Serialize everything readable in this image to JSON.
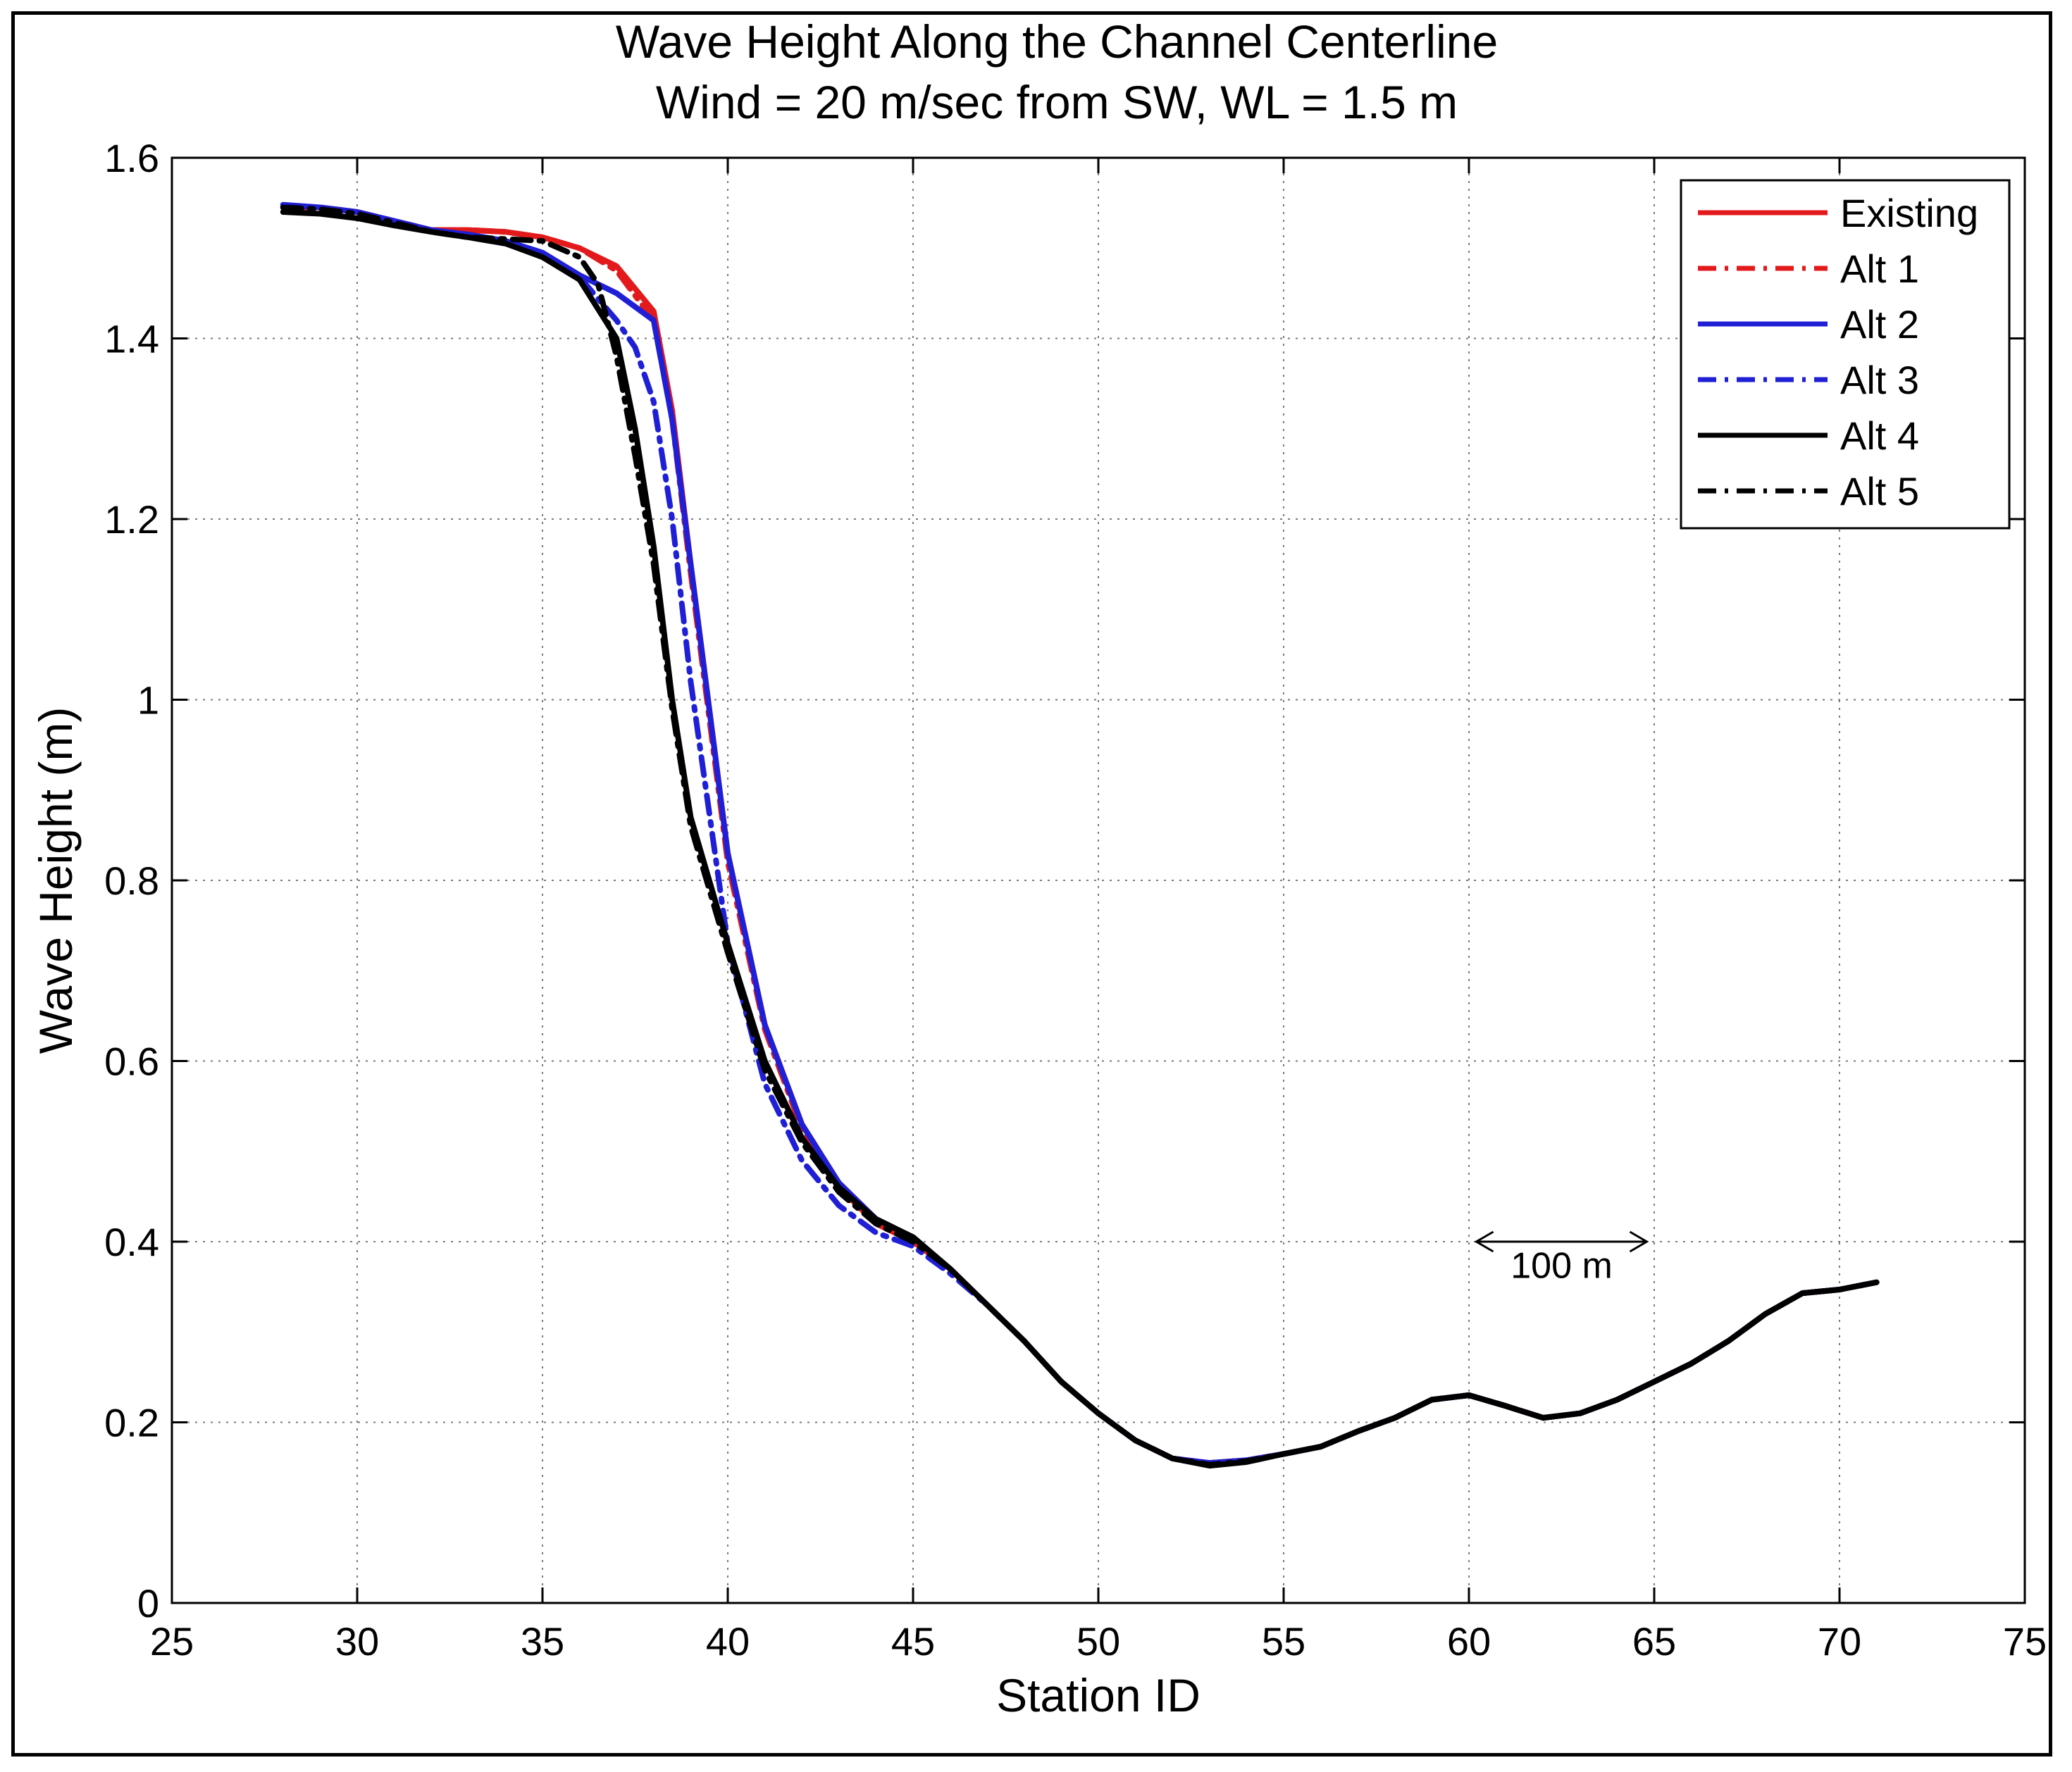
{
  "chart_data": {
    "type": "line",
    "title": "Wave Height Along the Channel Centerline",
    "subtitle": "Wind = 20 m/sec from SW, WL = 1.5 m",
    "xlabel": "Station ID",
    "ylabel": "Wave Height (m)",
    "xlim": [
      25,
      75
    ],
    "ylim": [
      0,
      1.6
    ],
    "xticks": [
      "25",
      "30",
      "35",
      "40",
      "45",
      "50",
      "55",
      "60",
      "65",
      "70",
      "75"
    ],
    "yticks": [
      "0",
      "0.2",
      "0.4",
      "0.6",
      "0.8",
      "1",
      "1.2",
      "1.4",
      "1.6"
    ],
    "grid": true,
    "legend_position": "top-right",
    "annotation": {
      "text": "100 m",
      "arrow_from_x": 60.2,
      "arrow_to_x": 64.8,
      "arrow_y": 0.4,
      "text_x": 62.5,
      "text_y": 0.36
    },
    "series": [
      {
        "name": "Existing",
        "color": "#e31a1c",
        "dash": "solid",
        "x": [
          28,
          29,
          30,
          31,
          32,
          33,
          34,
          35,
          36,
          37,
          38,
          38.5,
          39,
          40,
          41,
          42,
          43,
          44,
          45,
          46,
          47,
          48,
          49,
          50,
          51,
          52,
          53,
          54,
          55,
          56,
          57,
          58,
          59,
          60,
          61,
          62,
          63,
          64,
          65,
          66,
          67,
          68,
          69,
          70,
          71
        ],
        "y": [
          1.545,
          1.545,
          1.54,
          1.53,
          1.52,
          1.52,
          1.518,
          1.512,
          1.5,
          1.48,
          1.43,
          1.32,
          1.15,
          0.83,
          0.64,
          0.53,
          0.465,
          0.425,
          0.405,
          0.37,
          0.33,
          0.29,
          0.245,
          0.21,
          0.18,
          0.16,
          0.155,
          0.158,
          0.165,
          0.173,
          0.19,
          0.205,
          0.225,
          0.23,
          0.218,
          0.205,
          0.21,
          0.225,
          0.245,
          0.265,
          0.29,
          0.32,
          0.343,
          0.347,
          0.355
        ]
      },
      {
        "name": "Alt 1",
        "color": "#e31a1c",
        "dash": "dashdot",
        "x": [
          28,
          29,
          30,
          31,
          32,
          33,
          34,
          35,
          36,
          37,
          38,
          38.5,
          39,
          40,
          41,
          42,
          43,
          44,
          45,
          46,
          47,
          48,
          49,
          50,
          51,
          52,
          53,
          54,
          55,
          56,
          57,
          58,
          59,
          60,
          61,
          62,
          63,
          64,
          65,
          66,
          67,
          68,
          69,
          70,
          71
        ],
        "y": [
          1.545,
          1.545,
          1.54,
          1.53,
          1.52,
          1.52,
          1.518,
          1.512,
          1.5,
          1.475,
          1.42,
          1.31,
          1.14,
          0.82,
          0.635,
          0.525,
          0.46,
          0.42,
          0.4,
          0.37,
          0.33,
          0.29,
          0.245,
          0.21,
          0.18,
          0.16,
          0.155,
          0.158,
          0.165,
          0.173,
          0.19,
          0.205,
          0.225,
          0.23,
          0.218,
          0.205,
          0.21,
          0.225,
          0.245,
          0.265,
          0.29,
          0.32,
          0.343,
          0.347,
          0.355
        ]
      },
      {
        "name": "Alt 2",
        "color": "#1f1fd6",
        "dash": "solid",
        "x": [
          28,
          29,
          30,
          31,
          32,
          33,
          34,
          35,
          36,
          37,
          38,
          38.5,
          39,
          40,
          41,
          42,
          43,
          44,
          45,
          46,
          47,
          48,
          49,
          50,
          51,
          52,
          53,
          54,
          55,
          56,
          57,
          58,
          59,
          60,
          61,
          62,
          63,
          64,
          65,
          66,
          67,
          68,
          69,
          70,
          71
        ],
        "y": [
          1.548,
          1.545,
          1.54,
          1.53,
          1.52,
          1.515,
          1.508,
          1.495,
          1.47,
          1.45,
          1.42,
          1.31,
          1.15,
          0.83,
          0.64,
          0.53,
          0.465,
          0.425,
          0.405,
          0.37,
          0.33,
          0.29,
          0.245,
          0.21,
          0.18,
          0.16,
          0.155,
          0.158,
          0.165,
          0.173,
          0.19,
          0.205,
          0.225,
          0.23,
          0.218,
          0.205,
          0.21,
          0.225,
          0.245,
          0.265,
          0.29,
          0.32,
          0.343,
          0.347,
          0.355
        ]
      },
      {
        "name": "Alt 3",
        "color": "#1f1fd6",
        "dash": "dashdot",
        "x": [
          28,
          29,
          30,
          31,
          32,
          33,
          34,
          35,
          36,
          37,
          37.5,
          38,
          38.5,
          39,
          40,
          41,
          42,
          43,
          44,
          45,
          46,
          47,
          48,
          49,
          50,
          51,
          52,
          53,
          54,
          55,
          56,
          57,
          58,
          59,
          60,
          61,
          62,
          63,
          64,
          65,
          66,
          67,
          68,
          69,
          70,
          71
        ],
        "y": [
          1.545,
          1.543,
          1.538,
          1.528,
          1.518,
          1.512,
          1.505,
          1.493,
          1.468,
          1.42,
          1.39,
          1.33,
          1.2,
          1.02,
          0.73,
          0.575,
          0.49,
          0.44,
          0.41,
          0.395,
          0.365,
          0.33,
          0.29,
          0.245,
          0.21,
          0.18,
          0.16,
          0.155,
          0.158,
          0.165,
          0.173,
          0.19,
          0.205,
          0.225,
          0.23,
          0.218,
          0.205,
          0.21,
          0.225,
          0.245,
          0.265,
          0.29,
          0.32,
          0.343,
          0.347,
          0.355
        ]
      },
      {
        "name": "Alt 4",
        "color": "#000000",
        "dash": "solid",
        "x": [
          28,
          29,
          30,
          31,
          32,
          33,
          34,
          35,
          36,
          37,
          37.5,
          38,
          38.5,
          39,
          40,
          41,
          42,
          43,
          44,
          45,
          46,
          47,
          48,
          49,
          50,
          51,
          52,
          53,
          54,
          55,
          56,
          57,
          58,
          59,
          60,
          61,
          62,
          63,
          64,
          65,
          66,
          67,
          68,
          69,
          70,
          71
        ],
        "y": [
          1.54,
          1.538,
          1.533,
          1.525,
          1.518,
          1.512,
          1.505,
          1.49,
          1.465,
          1.4,
          1.3,
          1.17,
          1.0,
          0.87,
          0.73,
          0.6,
          0.515,
          0.46,
          0.425,
          0.405,
          0.37,
          0.33,
          0.29,
          0.245,
          0.21,
          0.18,
          0.16,
          0.152,
          0.156,
          0.165,
          0.173,
          0.19,
          0.205,
          0.225,
          0.23,
          0.218,
          0.205,
          0.21,
          0.225,
          0.245,
          0.265,
          0.29,
          0.32,
          0.343,
          0.347,
          0.355
        ]
      },
      {
        "name": "Alt 5",
        "color": "#000000",
        "dash": "dashdot",
        "x": [
          28,
          29,
          30,
          31,
          32,
          33,
          34,
          35,
          36,
          36.5,
          37,
          37.5,
          38,
          38.5,
          39,
          40,
          41,
          42,
          43,
          44,
          45,
          46,
          47,
          48,
          49,
          50,
          51,
          52,
          53,
          54,
          55,
          56,
          57,
          58,
          59,
          60,
          61,
          62,
          63,
          64,
          65,
          66,
          67,
          68,
          69,
          70,
          71
        ],
        "y": [
          1.545,
          1.543,
          1.538,
          1.528,
          1.518,
          1.512,
          1.51,
          1.508,
          1.49,
          1.46,
          1.38,
          1.27,
          1.15,
          0.99,
          0.86,
          0.72,
          0.59,
          0.51,
          0.455,
          0.42,
          0.4,
          0.37,
          0.33,
          0.29,
          0.245,
          0.21,
          0.18,
          0.16,
          0.153,
          0.157,
          0.165,
          0.173,
          0.19,
          0.205,
          0.225,
          0.23,
          0.218,
          0.205,
          0.21,
          0.225,
          0.245,
          0.265,
          0.29,
          0.32,
          0.343,
          0.347,
          0.355
        ]
      }
    ]
  }
}
